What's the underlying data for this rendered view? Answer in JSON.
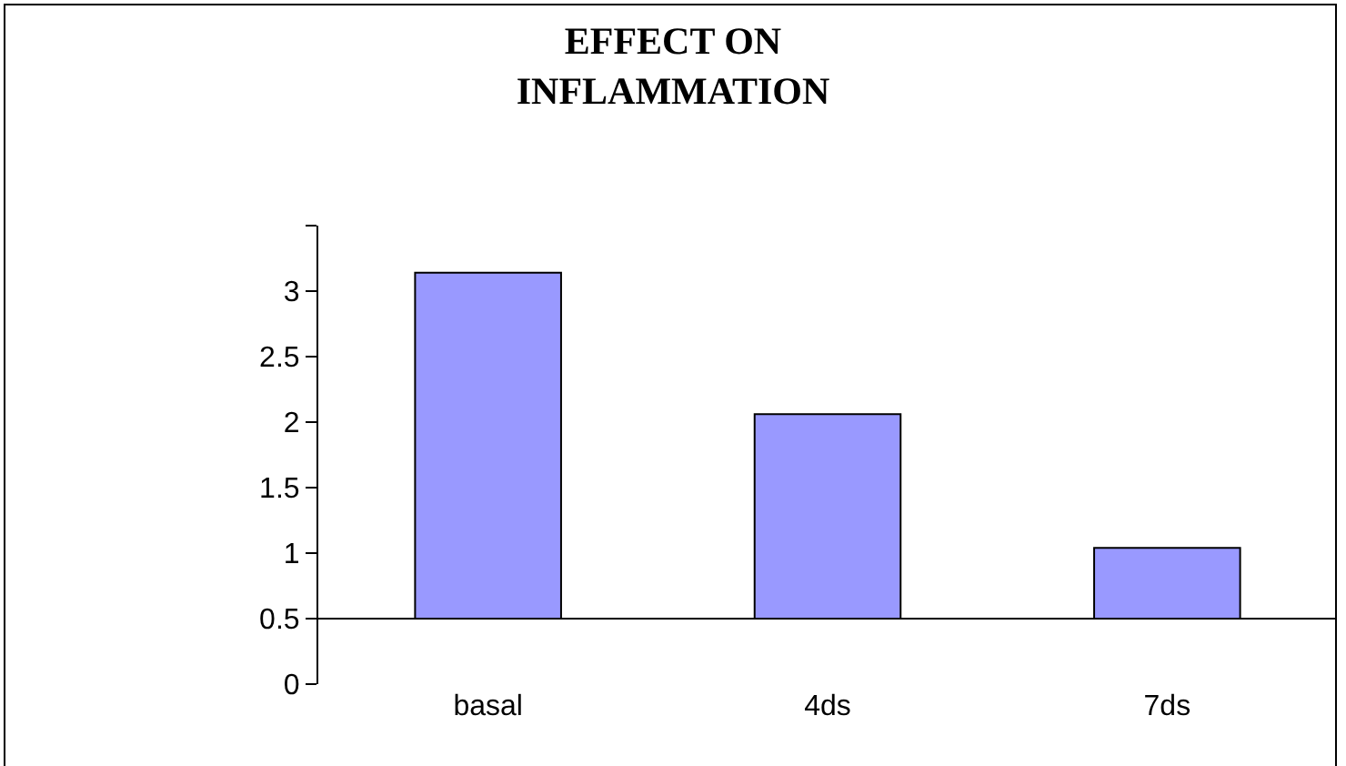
{
  "chart_data": {
    "type": "bar",
    "title": "EFFECT ON\nINFLAMMATION",
    "categories": [
      "basal",
      "4ds",
      "7ds"
    ],
    "values": [
      2.64,
      1.56,
      0.54
    ],
    "base": [
      0.5,
      0.5,
      0.5
    ],
    "color": "#9999ff",
    "ylim": [
      0,
      3.5
    ],
    "yticks": [
      0,
      0.5,
      1,
      1.5,
      2,
      2.5,
      3,
      {
        "value": 3.5,
        "label": null
      }
    ],
    "grid": false
  }
}
